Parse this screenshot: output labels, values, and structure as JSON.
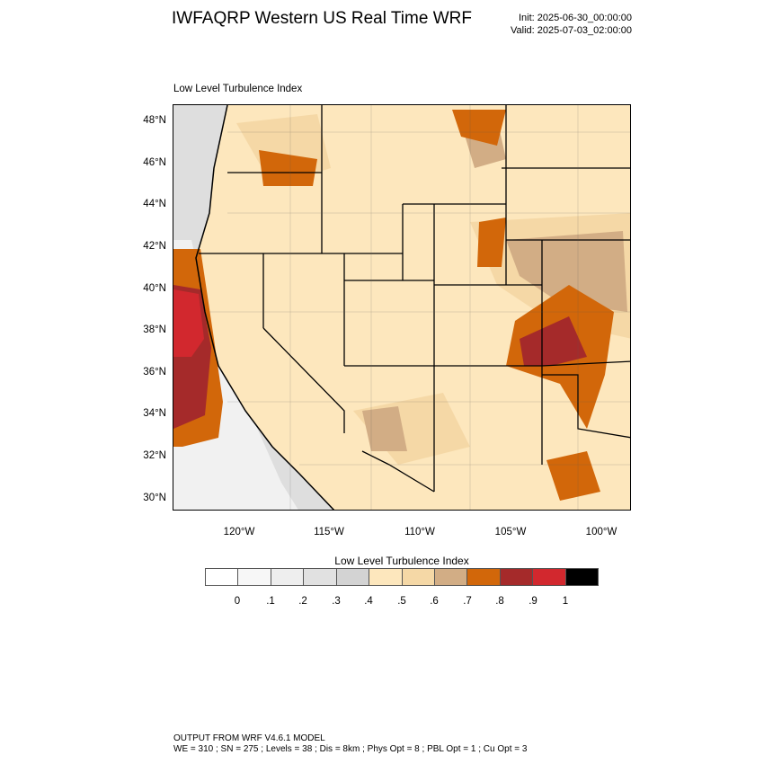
{
  "header": {
    "title": "IWFAQRP Western US Real Time WRF",
    "init": "Init: 2025-06-30_00:00:00",
    "valid": "Valid: 2025-07-03_02:00:00"
  },
  "panel": {
    "title": "Low Level Turbulence Index"
  },
  "map": {
    "lat_labels": [
      "48°N",
      "46°N",
      "44°N",
      "42°N",
      "40°N",
      "38°N",
      "36°N",
      "34°N",
      "32°N",
      "30°N"
    ],
    "lon_labels": [
      "120°W",
      "115°W",
      "110°W",
      "105°W",
      "100°W"
    ],
    "colors": {
      "ocean_light": "#dedede",
      "ocean_mid": "#f1f1f1",
      "land_base": "#fde7bd",
      "land_mid": "#f5d8a6",
      "tan": "#d2ad85",
      "orange": "#d2670a",
      "dark_red": "#a52a2a",
      "red": "#d2282e",
      "border": "#000000"
    }
  },
  "legend": {
    "title": "Low Level Turbulence Index",
    "colors": [
      "#ffffff",
      "#f7f7f7",
      "#eeeeee",
      "#e1e1e1",
      "#d3d3d3",
      "#fde7bd",
      "#f5d8a6",
      "#d2ad85",
      "#d2670a",
      "#a52a2a",
      "#d2282e",
      "#000000"
    ],
    "ticks": [
      "0",
      ".1",
      ".2",
      ".3",
      ".4",
      ".5",
      ".6",
      ".7",
      ".8",
      ".9",
      "1"
    ]
  },
  "footer": {
    "line1": "OUTPUT FROM WRF V4.6.1 MODEL",
    "line2": "WE = 310 ; SN = 275 ; Levels = 38 ; Dis = 8km ; Phys Opt = 8 ; PBL Opt = 1 ; Cu Opt = 3"
  }
}
